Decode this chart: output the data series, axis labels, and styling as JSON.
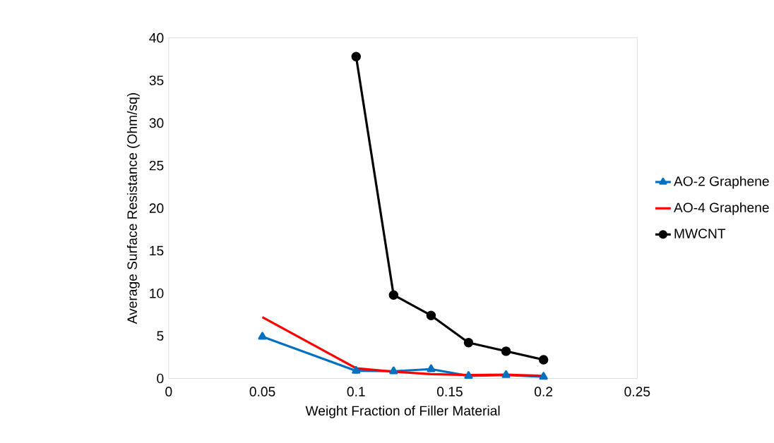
{
  "chart_data": {
    "type": "line",
    "xlabel": "Weight Fraction of Filler Material",
    "ylabel": "Average  Surface Resistance (Ohm/sq)",
    "x": [
      0.05,
      0.1,
      0.12,
      0.14,
      0.16,
      0.18,
      0.2
    ],
    "series": [
      {
        "name": "AO-2 Graphene",
        "color": "#0070c0",
        "marker": "triangle",
        "values": [
          4.9,
          0.9,
          0.85,
          1.1,
          0.3,
          0.4,
          0.2
        ]
      },
      {
        "name": "AO-4  Graphene",
        "color": "#ff0000",
        "marker": "none",
        "values": [
          7.2,
          1.2,
          0.8,
          0.5,
          0.4,
          0.45,
          0.3
        ]
      },
      {
        "name": "MWCNT",
        "color": "#000000",
        "marker": "circle",
        "values": [
          null,
          37.8,
          9.8,
          7.4,
          4.2,
          3.2,
          2.2
        ]
      }
    ],
    "xlim": [
      0,
      0.25
    ],
    "xticks": [
      0,
      0.05,
      0.1,
      0.15,
      0.2,
      0.25
    ],
    "ylim": [
      0,
      40
    ],
    "yticks": [
      0,
      5,
      10,
      15,
      20,
      25,
      30,
      35,
      40
    ],
    "grid": false,
    "legend": "right"
  }
}
